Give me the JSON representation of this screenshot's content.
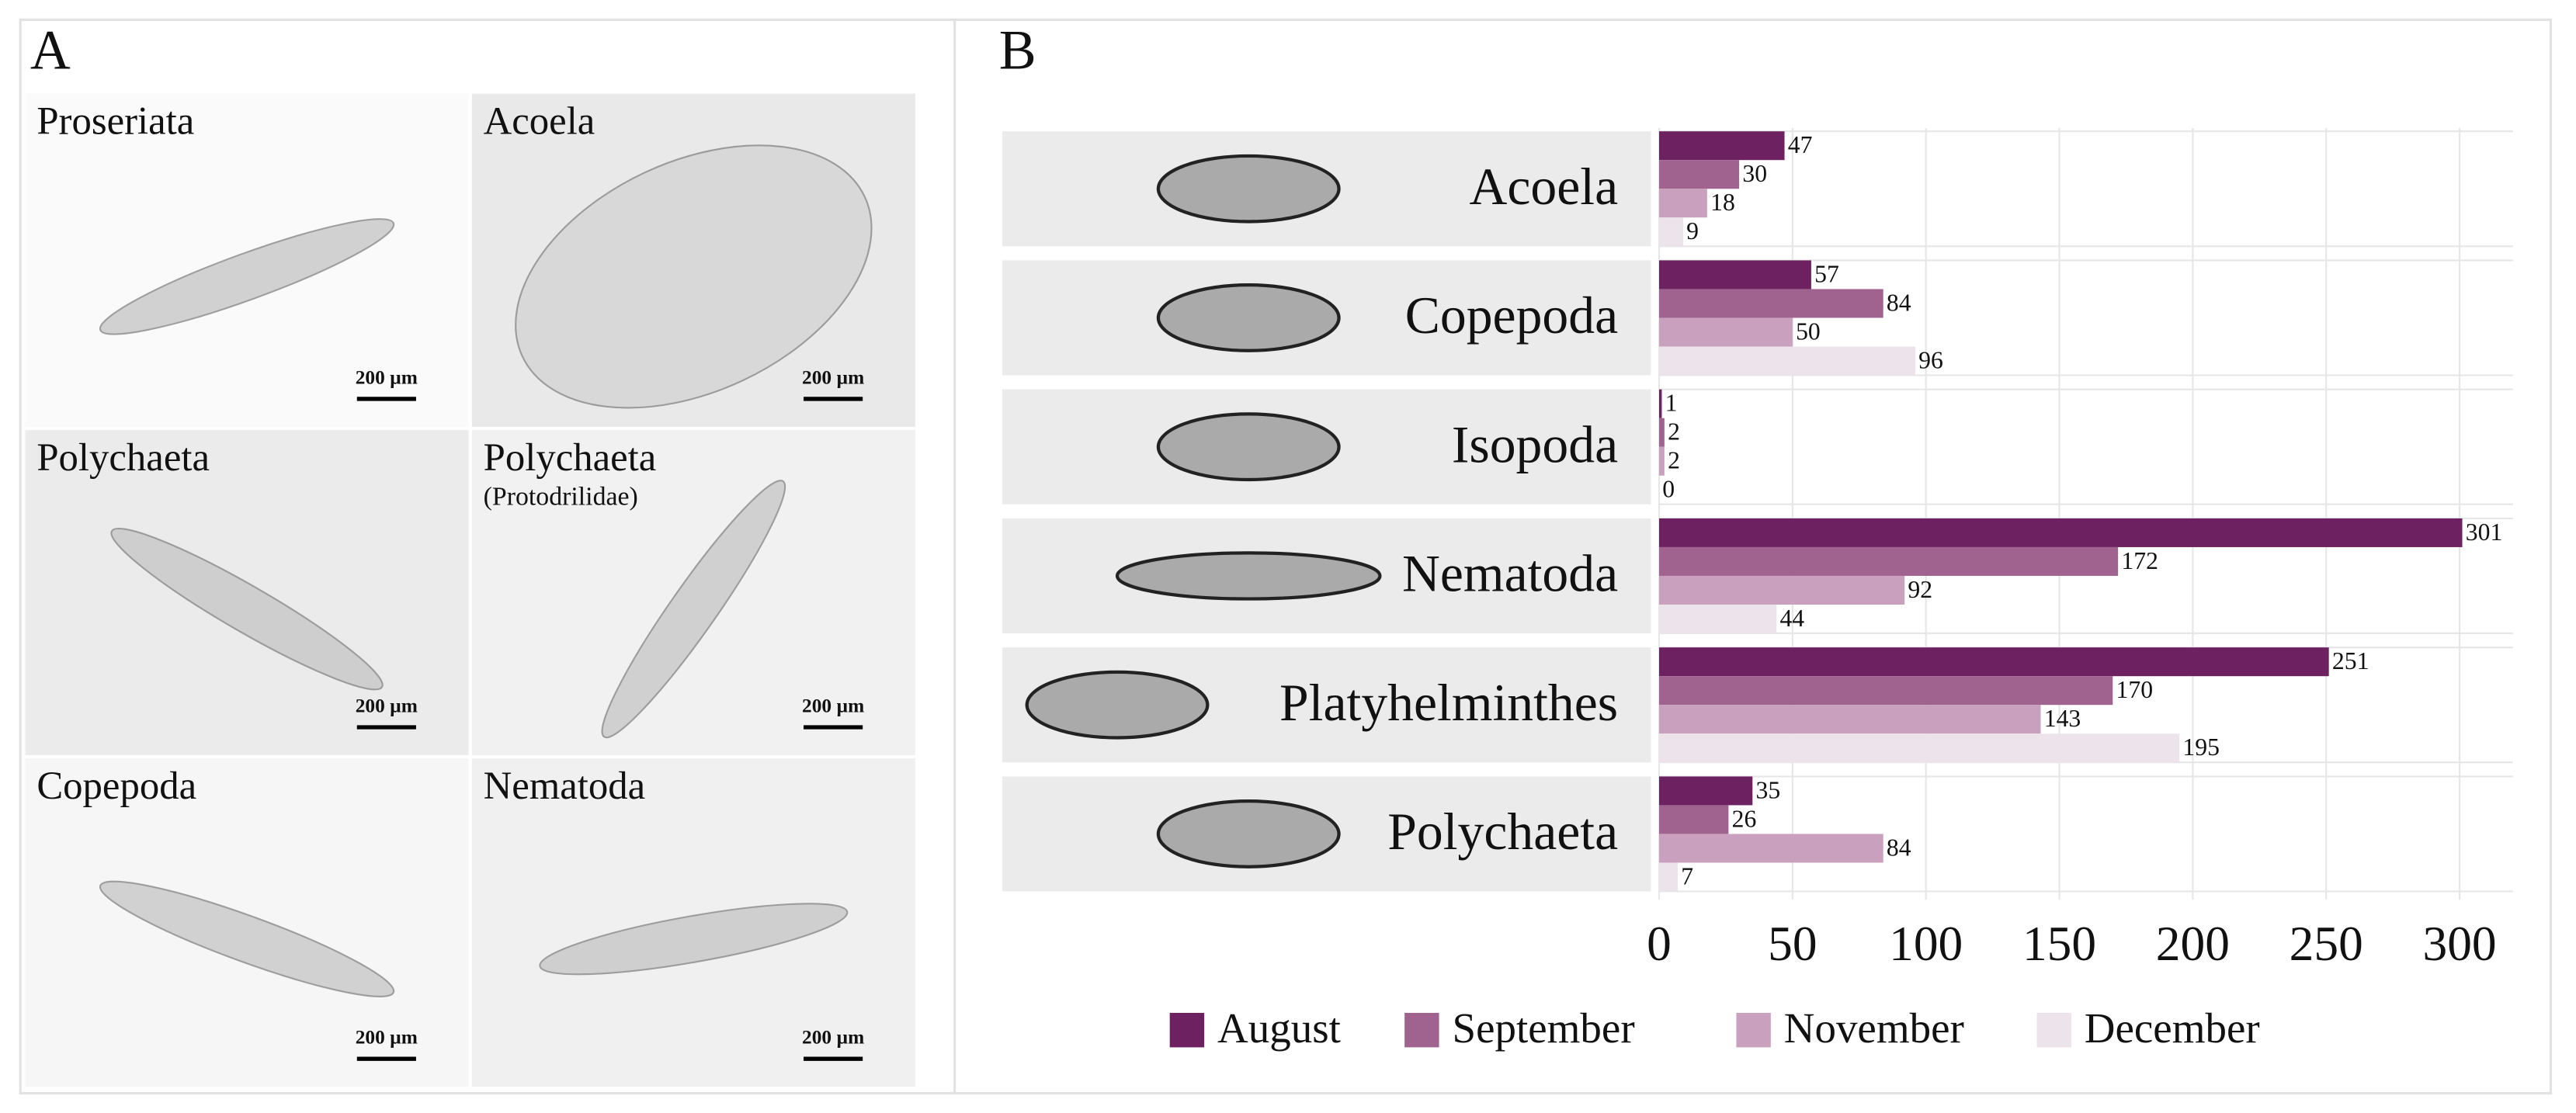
{
  "panel_a": {
    "label": "A",
    "images": [
      {
        "name": "Proseriata",
        "scale_bar": "200 µm"
      },
      {
        "name": "Acoela",
        "scale_bar": "200 µm"
      },
      {
        "name": "Polychaeta",
        "scale_bar": "200 µm"
      },
      {
        "name": "Polychaeta",
        "subtitle": "(Protodrilidae)",
        "scale_bar": "200 µm"
      },
      {
        "name": "Copepoda",
        "scale_bar": "200 µm"
      },
      {
        "name": "Nematoda",
        "scale_bar": "200 µm"
      }
    ]
  },
  "panel_b": {
    "label": "B"
  },
  "chart_data": {
    "type": "hbar",
    "categories": [
      "Acoela",
      "Copepoda",
      "Isopoda",
      "Nematoda",
      "Platyhelminthes",
      "Polychaeta"
    ],
    "series": [
      {
        "name": "August",
        "color": "#6d2160",
        "values": [
          47,
          57,
          1,
          301,
          251,
          35
        ]
      },
      {
        "name": "September",
        "color": "#a0638f",
        "values": [
          30,
          84,
          2,
          172,
          170,
          26
        ]
      },
      {
        "name": "November",
        "color": "#c9a0bd",
        "values": [
          18,
          50,
          2,
          92,
          143,
          84
        ]
      },
      {
        "name": "December",
        "color": "#ede3ea",
        "values": [
          9,
          96,
          0,
          44,
          195,
          7
        ]
      }
    ],
    "xlim": [
      0,
      320
    ],
    "xticks": [
      0,
      50,
      100,
      150,
      200,
      250,
      300
    ],
    "grid": true,
    "legend": "bottom"
  }
}
